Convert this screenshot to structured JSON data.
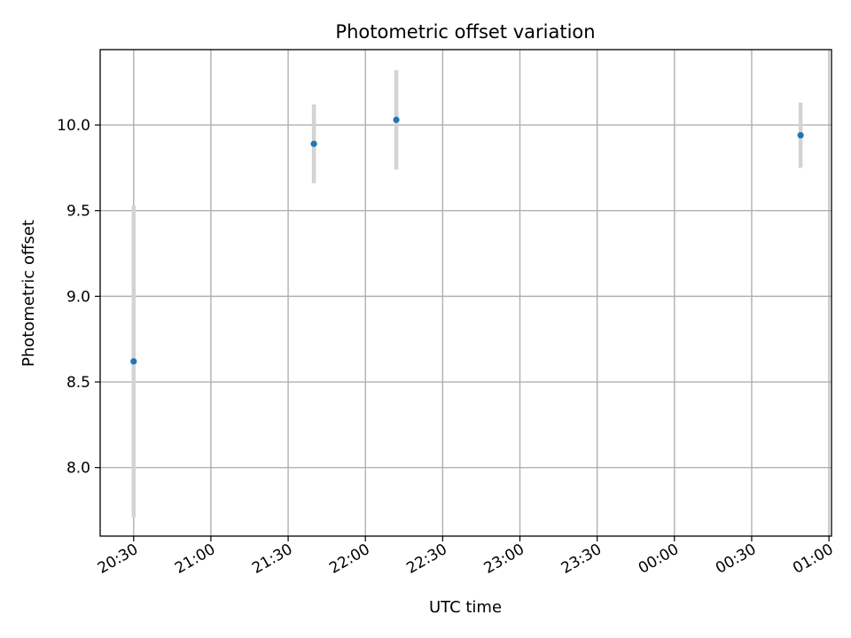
{
  "chart_data": {
    "type": "scatter",
    "title": "Photometric offset variation",
    "xlabel": "UTC time",
    "ylabel": "Photometric offset",
    "x_ticks": [
      "20:30",
      "21:00",
      "21:30",
      "22:00",
      "22:30",
      "23:00",
      "23:30",
      "00:00",
      "00:30",
      "01:00"
    ],
    "y_ticks": [
      "8.0",
      "8.5",
      "9.0",
      "9.5",
      "10.0"
    ],
    "xlim": [
      "20:17",
      "01:01"
    ],
    "ylim": [
      7.6,
      10.44
    ],
    "grid": true,
    "points": [
      {
        "time": "20:30",
        "y": 8.62,
        "error": 0.91
      },
      {
        "time": "21:40",
        "y": 9.89,
        "error": 0.23
      },
      {
        "time": "22:12",
        "y": 10.03,
        "error": 0.29
      },
      {
        "time": "00:49",
        "y": 9.94,
        "error": 0.19
      }
    ],
    "colors": {
      "marker": "#1f77b4",
      "errorbar": "#d3d3d3",
      "grid": "#b0b0b0"
    }
  }
}
